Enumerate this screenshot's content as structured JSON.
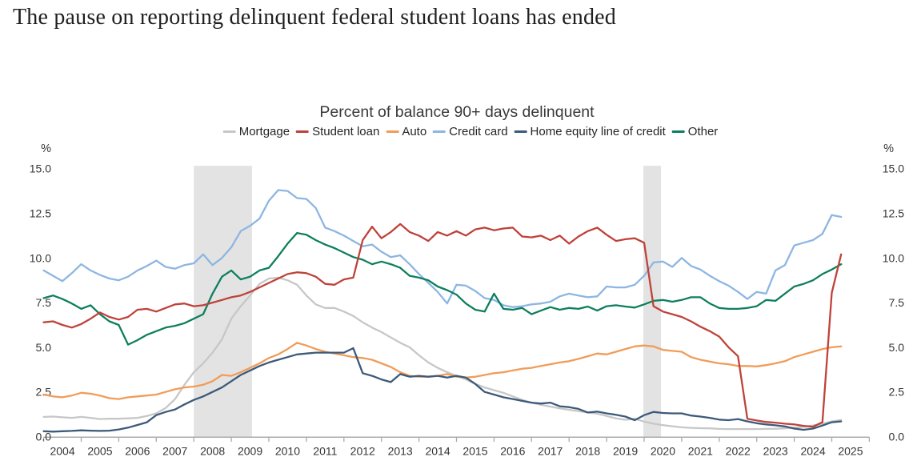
{
  "headline": "The pause on reporting delinquent federal student loans has ended",
  "chart_data": {
    "type": "line",
    "title": "Percent of balance 90+ days delinquent",
    "frequency": "quarterly",
    "legend_position": "top",
    "gridlines": false,
    "x_axis": {
      "start_year": 2004,
      "end_year": 2026,
      "step_years": 0.25,
      "labels": [
        "2004",
        "2005",
        "2006",
        "2007",
        "2008",
        "2009",
        "2010",
        "2011",
        "2012",
        "2013",
        "2014",
        "2015",
        "2016",
        "2017",
        "2018",
        "2019",
        "2020",
        "2021",
        "2022",
        "2023",
        "2024",
        "2025"
      ]
    },
    "y_axis": {
      "unit_label": "%",
      "min": 0,
      "max": 15,
      "ticks": [
        {
          "label": "15.0",
          "value": 15
        },
        {
          "label": "12.5",
          "value": 12.5
        },
        {
          "label": "10.0",
          "value": 10
        },
        {
          "label": "7.5",
          "value": 7.5
        },
        {
          "label": "5.0",
          "value": 5
        },
        {
          "label": "2.5",
          "value": 2.5
        },
        {
          "label": "0.0",
          "value": 0
        }
      ]
    },
    "recession_bands": [
      {
        "start": 2008.0,
        "end": 2009.55
      },
      {
        "start": 2019.98,
        "end": 2020.45
      }
    ],
    "colors": {
      "axis": "#ababab",
      "tick_text": "#353535",
      "recession_band": "#e3e3e3"
    },
    "series": [
      {
        "id": "mortgage",
        "name": "Mortgage",
        "color": "#c7c7c7",
        "z": 1,
        "values": [
          1.1,
          1.12,
          1.08,
          1.05,
          1.1,
          1.05,
          0.98,
          1.0,
          1.0,
          1.02,
          1.05,
          1.15,
          1.3,
          1.6,
          2.1,
          2.9,
          3.6,
          4.1,
          4.7,
          5.45,
          6.6,
          7.3,
          7.9,
          8.55,
          8.85,
          8.9,
          8.75,
          8.5,
          7.9,
          7.4,
          7.2,
          7.2,
          7.0,
          6.75,
          6.4,
          6.1,
          5.85,
          5.55,
          5.25,
          5.0,
          4.55,
          4.15,
          3.85,
          3.6,
          3.4,
          3.2,
          2.95,
          2.75,
          2.6,
          2.45,
          2.25,
          2.05,
          1.9,
          1.78,
          1.68,
          1.58,
          1.5,
          1.42,
          1.35,
          1.28,
          1.15,
          1.02,
          0.94,
          1.0,
          0.84,
          0.72,
          0.64,
          0.58,
          0.52,
          0.49,
          0.47,
          0.46,
          0.43,
          0.42,
          0.42,
          0.42,
          0.42,
          0.43,
          0.44,
          0.46,
          0.5,
          0.55,
          0.62,
          0.72,
          0.85,
          0.93
        ]
      },
      {
        "id": "student-loan",
        "name": "Student loan",
        "color": "#bf423a",
        "z": 6,
        "values": [
          6.4,
          6.45,
          6.25,
          6.1,
          6.3,
          6.6,
          6.95,
          6.7,
          6.55,
          6.7,
          7.1,
          7.15,
          7.0,
          7.2,
          7.4,
          7.45,
          7.3,
          7.35,
          7.5,
          7.65,
          7.8,
          7.9,
          8.1,
          8.35,
          8.6,
          8.85,
          9.1,
          9.2,
          9.15,
          8.95,
          8.55,
          8.5,
          8.8,
          8.9,
          11.0,
          11.75,
          11.1,
          11.45,
          11.9,
          11.45,
          11.25,
          10.95,
          11.45,
          11.25,
          11.5,
          11.25,
          11.6,
          11.7,
          11.55,
          11.65,
          11.7,
          11.2,
          11.15,
          11.25,
          11.0,
          11.25,
          10.8,
          11.2,
          11.5,
          11.7,
          11.3,
          10.95,
          11.05,
          11.1,
          10.85,
          7.3,
          7.0,
          6.85,
          6.7,
          6.45,
          6.15,
          5.9,
          5.6,
          5.0,
          4.5,
          1.0,
          0.9,
          0.82,
          0.78,
          0.72,
          0.68,
          0.6,
          0.55,
          0.8,
          8.05,
          10.2
        ]
      },
      {
        "id": "auto",
        "name": "Auto",
        "color": "#f19c58",
        "z": 2,
        "values": [
          2.35,
          2.25,
          2.2,
          2.3,
          2.45,
          2.4,
          2.3,
          2.15,
          2.1,
          2.2,
          2.25,
          2.3,
          2.35,
          2.5,
          2.65,
          2.75,
          2.8,
          2.9,
          3.1,
          3.45,
          3.4,
          3.6,
          3.85,
          4.1,
          4.4,
          4.6,
          4.9,
          5.25,
          5.1,
          4.9,
          4.75,
          4.65,
          4.55,
          4.45,
          4.4,
          4.3,
          4.1,
          3.9,
          3.6,
          3.4,
          3.35,
          3.35,
          3.4,
          3.5,
          3.35,
          3.3,
          3.35,
          3.45,
          3.55,
          3.6,
          3.7,
          3.8,
          3.85,
          3.95,
          4.05,
          4.15,
          4.22,
          4.35,
          4.5,
          4.65,
          4.6,
          4.75,
          4.9,
          5.05,
          5.1,
          5.05,
          4.85,
          4.8,
          4.75,
          4.45,
          4.3,
          4.2,
          4.1,
          4.05,
          3.95,
          3.95,
          3.93,
          4.0,
          4.1,
          4.22,
          4.45,
          4.6,
          4.75,
          4.9,
          5.0,
          5.05
        ]
      },
      {
        "id": "credit-card",
        "name": "Credit card",
        "color": "#8db6e2",
        "z": 4,
        "values": [
          9.3,
          9.0,
          8.7,
          9.15,
          9.65,
          9.3,
          9.05,
          8.85,
          8.75,
          8.95,
          9.3,
          9.55,
          9.85,
          9.5,
          9.4,
          9.6,
          9.7,
          10.2,
          9.6,
          10.0,
          10.6,
          11.5,
          11.8,
          12.2,
          13.2,
          13.8,
          13.75,
          13.35,
          13.3,
          12.8,
          11.7,
          11.5,
          11.25,
          10.95,
          10.65,
          10.75,
          10.35,
          10.05,
          10.15,
          9.65,
          9.1,
          8.6,
          8.1,
          7.45,
          8.5,
          8.45,
          8.15,
          7.75,
          7.65,
          7.35,
          7.25,
          7.3,
          7.4,
          7.45,
          7.55,
          7.85,
          8.0,
          7.9,
          7.8,
          7.85,
          8.4,
          8.35,
          8.35,
          8.5,
          9.0,
          9.75,
          9.8,
          9.5,
          10.0,
          9.55,
          9.35,
          9.0,
          8.7,
          8.45,
          8.1,
          7.7,
          8.1,
          8.0,
          9.3,
          9.6,
          10.7,
          10.85,
          11.0,
          11.35,
          12.4,
          12.3
        ]
      },
      {
        "id": "heloc",
        "name": "Home equity line of credit",
        "color": "#3c5a7a",
        "z": 3,
        "values": [
          0.3,
          0.28,
          0.3,
          0.32,
          0.35,
          0.33,
          0.32,
          0.33,
          0.4,
          0.5,
          0.65,
          0.8,
          1.2,
          1.38,
          1.52,
          1.8,
          2.05,
          2.25,
          2.5,
          2.75,
          3.1,
          3.45,
          3.7,
          3.95,
          4.15,
          4.3,
          4.45,
          4.6,
          4.65,
          4.7,
          4.7,
          4.7,
          4.7,
          4.95,
          3.55,
          3.4,
          3.2,
          3.05,
          3.5,
          3.35,
          3.4,
          3.35,
          3.4,
          3.3,
          3.4,
          3.3,
          2.95,
          2.5,
          2.35,
          2.2,
          2.1,
          2.0,
          1.9,
          1.85,
          1.9,
          1.7,
          1.65,
          1.55,
          1.35,
          1.4,
          1.3,
          1.22,
          1.12,
          0.92,
          1.2,
          1.38,
          1.32,
          1.3,
          1.3,
          1.18,
          1.12,
          1.05,
          0.95,
          0.92,
          0.98,
          0.85,
          0.75,
          0.68,
          0.63,
          0.57,
          0.45,
          0.38,
          0.45,
          0.62,
          0.8,
          0.85
        ]
      },
      {
        "id": "other",
        "name": "Other",
        "color": "#0e7f5e",
        "z": 5,
        "values": [
          7.75,
          7.9,
          7.7,
          7.45,
          7.15,
          7.35,
          6.85,
          6.45,
          6.25,
          5.15,
          5.4,
          5.7,
          5.9,
          6.1,
          6.2,
          6.35,
          6.6,
          6.85,
          8.0,
          8.95,
          9.3,
          8.8,
          8.95,
          9.3,
          9.45,
          10.1,
          10.8,
          11.4,
          11.3,
          11.0,
          10.75,
          10.55,
          10.3,
          10.05,
          9.9,
          9.65,
          9.8,
          9.65,
          9.45,
          9.0,
          8.9,
          8.75,
          8.4,
          8.2,
          7.95,
          7.45,
          7.1,
          7.0,
          8.0,
          7.15,
          7.1,
          7.2,
          6.85,
          7.05,
          7.25,
          7.1,
          7.2,
          7.15,
          7.28,
          7.05,
          7.3,
          7.35,
          7.28,
          7.22,
          7.4,
          7.6,
          7.65,
          7.55,
          7.65,
          7.8,
          7.8,
          7.45,
          7.2,
          7.15,
          7.15,
          7.2,
          7.3,
          7.65,
          7.6,
          8.0,
          8.4,
          8.55,
          8.75,
          9.1,
          9.35,
          9.65
        ]
      }
    ]
  }
}
